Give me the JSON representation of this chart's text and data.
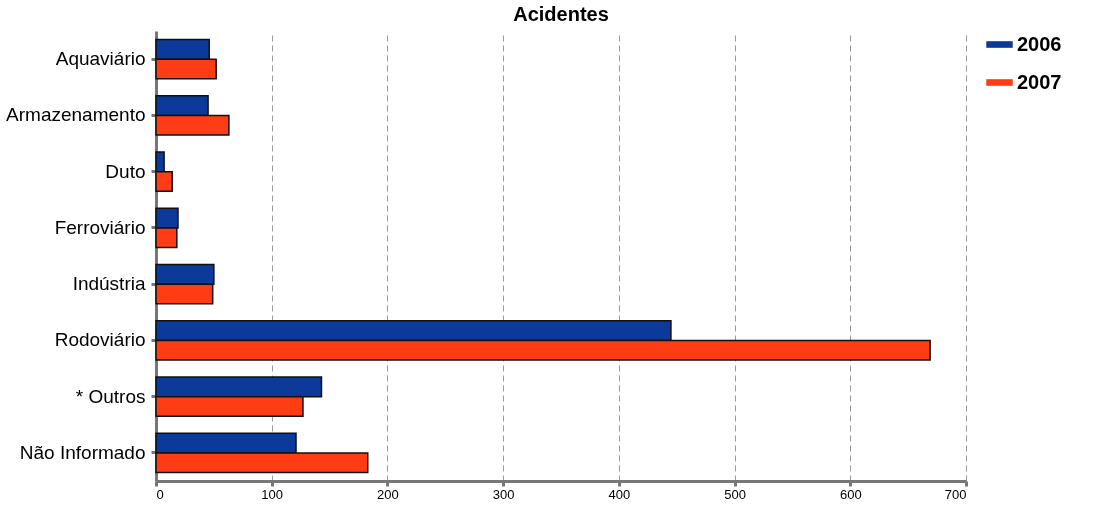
{
  "chart_data": {
    "type": "bar",
    "orientation": "horizontal",
    "title": "Acidentes",
    "categories": [
      "Aquaviário",
      "Armazenamento",
      "Duto",
      "Ferroviário",
      "Indústria",
      "Rodoviário",
      "* Outros",
      "Não Informado"
    ],
    "series": [
      {
        "name": "2006",
        "color": "#0b3a9a",
        "values": [
          46,
          45,
          7,
          19,
          50,
          445,
          143,
          121
        ]
      },
      {
        "name": "2007",
        "color": "#ff3c14",
        "values": [
          52,
          63,
          14,
          18,
          49,
          669,
          127,
          183
        ]
      }
    ],
    "xlim": [
      0,
      700
    ],
    "xticks": [
      0,
      100,
      200,
      300,
      400,
      500,
      600,
      700
    ],
    "grid": "x",
    "legend": "top right"
  }
}
